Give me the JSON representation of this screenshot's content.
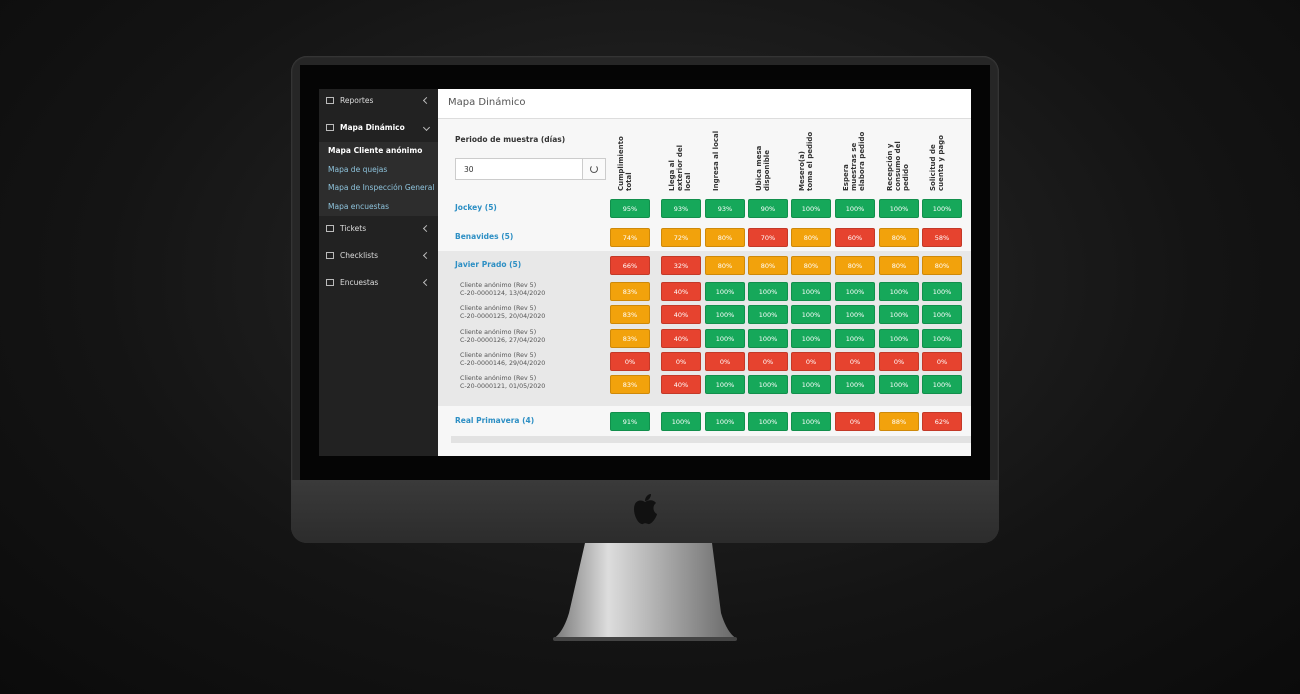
{
  "sidebar": {
    "items": [
      {
        "label": "Reportes"
      },
      {
        "label": "Mapa Dinámico",
        "submenu": [
          "Mapa Cliente anónimo",
          "Mapa de quejas",
          "Mapa de Inspección General",
          "Mapa encuestas"
        ]
      },
      {
        "label": "Tickets"
      },
      {
        "label": "Checklists"
      },
      {
        "label": "Encuestas"
      }
    ]
  },
  "header": {
    "title": "Mapa Dinámico"
  },
  "filter": {
    "label": "Periodo de muestra (días)",
    "value": "30"
  },
  "table": {
    "columns": [
      "Cumplimiento total",
      "Llega al exterior del local",
      "Ingresa al local",
      "Ubica mesa disponible",
      "Mesero(a) toma el pedido",
      "Espera muestras se elabora pedido",
      "Recepción y consumo del pedido",
      "Solicitud de cuenta y pago"
    ],
    "rows": [
      {
        "name": "Jockey (5)",
        "cells": [
          "95%",
          "93%",
          "93%",
          "90%",
          "100%",
          "100%",
          "100%",
          "100%"
        ],
        "colors": [
          "green",
          "green",
          "green",
          "green",
          "green",
          "green",
          "green",
          "green"
        ]
      },
      {
        "name": "Benavides (5)",
        "cells": [
          "74%",
          "72%",
          "80%",
          "70%",
          "80%",
          "60%",
          "80%",
          "58%"
        ],
        "colors": [
          "orange",
          "orange",
          "orange",
          "red",
          "orange",
          "red",
          "orange",
          "red"
        ]
      },
      {
        "name": "Javier Prado (5)",
        "cells": [
          "66%",
          "32%",
          "80%",
          "80%",
          "80%",
          "80%",
          "80%",
          "80%"
        ],
        "colors": [
          "red",
          "red",
          "orange",
          "orange",
          "orange",
          "orange",
          "orange",
          "orange"
        ],
        "entries": [
          {
            "name": "Cliente anónimo (Rev 5)",
            "detail": "C-20-0000124, 13/04/2020",
            "cells": [
              "83%",
              "40%",
              "100%",
              "100%",
              "100%",
              "100%",
              "100%",
              "100%"
            ],
            "colors": [
              "orange",
              "red",
              "green",
              "green",
              "green",
              "green",
              "green",
              "green"
            ]
          },
          {
            "name": "Cliente anónimo (Rev 5)",
            "detail": "C-20-0000125, 20/04/2020",
            "cells": [
              "83%",
              "40%",
              "100%",
              "100%",
              "100%",
              "100%",
              "100%",
              "100%"
            ],
            "colors": [
              "orange",
              "red",
              "green",
              "green",
              "green",
              "green",
              "green",
              "green"
            ]
          },
          {
            "name": "Cliente anónimo (Rev 5)",
            "detail": "C-20-0000126, 27/04/2020",
            "cells": [
              "83%",
              "40%",
              "100%",
              "100%",
              "100%",
              "100%",
              "100%",
              "100%"
            ],
            "colors": [
              "orange",
              "red",
              "green",
              "green",
              "green",
              "green",
              "green",
              "green"
            ]
          },
          {
            "name": "Cliente anónimo (Rev 5)",
            "detail": "C-20-0000146, 29/04/2020",
            "cells": [
              "0%",
              "0%",
              "0%",
              "0%",
              "0%",
              "0%",
              "0%",
              "0%"
            ],
            "colors": [
              "red",
              "red",
              "red",
              "red",
              "red",
              "red",
              "red",
              "red"
            ]
          },
          {
            "name": "Cliente anónimo (Rev 5)",
            "detail": "C-20-0000121, 01/05/2020",
            "cells": [
              "83%",
              "40%",
              "100%",
              "100%",
              "100%",
              "100%",
              "100%",
              "100%"
            ],
            "colors": [
              "orange",
              "red",
              "green",
              "green",
              "green",
              "green",
              "green",
              "green"
            ]
          }
        ]
      },
      {
        "name": "Real Primavera (4)",
        "cells": [
          "91%",
          "100%",
          "100%",
          "100%",
          "100%",
          "0%",
          "88%",
          "62%"
        ],
        "colors": [
          "green",
          "green",
          "green",
          "green",
          "green",
          "red",
          "orange",
          "red"
        ]
      }
    ]
  }
}
